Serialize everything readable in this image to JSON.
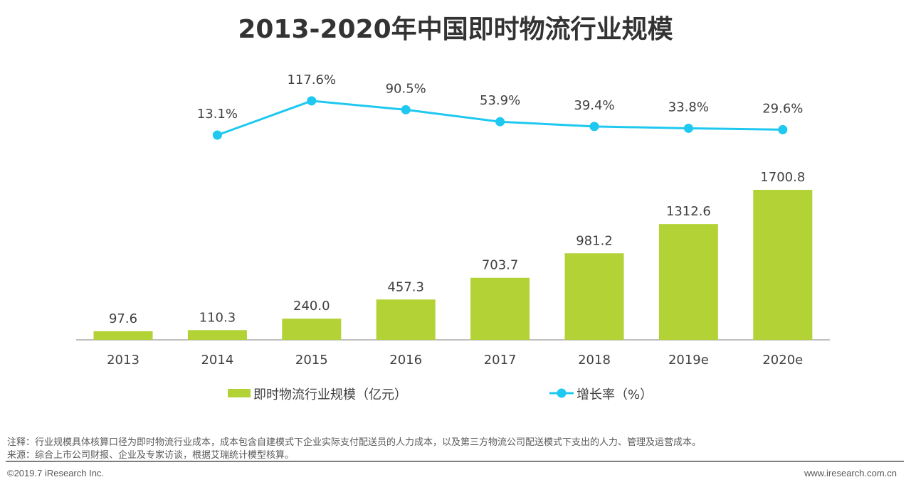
{
  "chart_data": {
    "type": "bar+line",
    "title": "2013-2020年中国即时物流行业规模",
    "categories": [
      "2013",
      "2014",
      "2015",
      "2016",
      "2017",
      "2018",
      "2019e",
      "2020e"
    ],
    "series": [
      {
        "name": "即时物流行业规模（亿元）",
        "type": "bar",
        "color": "#b2d235",
        "values": [
          97.6,
          110.3,
          240.0,
          457.3,
          703.7,
          981.2,
          1312.6,
          1700.8
        ],
        "labels": [
          "97.6",
          "110.3",
          "240.0",
          "457.3",
          "703.7",
          "981.2",
          "1312.6",
          "1700.8"
        ]
      },
      {
        "name": "增长率（%）",
        "type": "line",
        "color": "#1ec8f0",
        "values": [
          null,
          13.1,
          117.6,
          90.5,
          53.9,
          39.4,
          33.8,
          29.6
        ],
        "labels": [
          "",
          "13.1%",
          "117.6%",
          "90.5%",
          "53.9%",
          "39.4%",
          "33.8%",
          "29.6%"
        ]
      }
    ],
    "grid": false,
    "legend": "bottom"
  },
  "notes": {
    "note": "注释：行业规模具体核算口径为即时物流行业成本，成本包含自建模式下企业实际支付配送员的人力成本，以及第三方物流公司配送模式下支出的人力、管理及运营成本。",
    "source": "来源：综合上市公司财报、企业及专家访谈，根据艾瑞统计模型核算。"
  },
  "footer": {
    "copyright": "©2019.7 iResearch Inc.",
    "website": "www.iresearch.com.cn"
  }
}
